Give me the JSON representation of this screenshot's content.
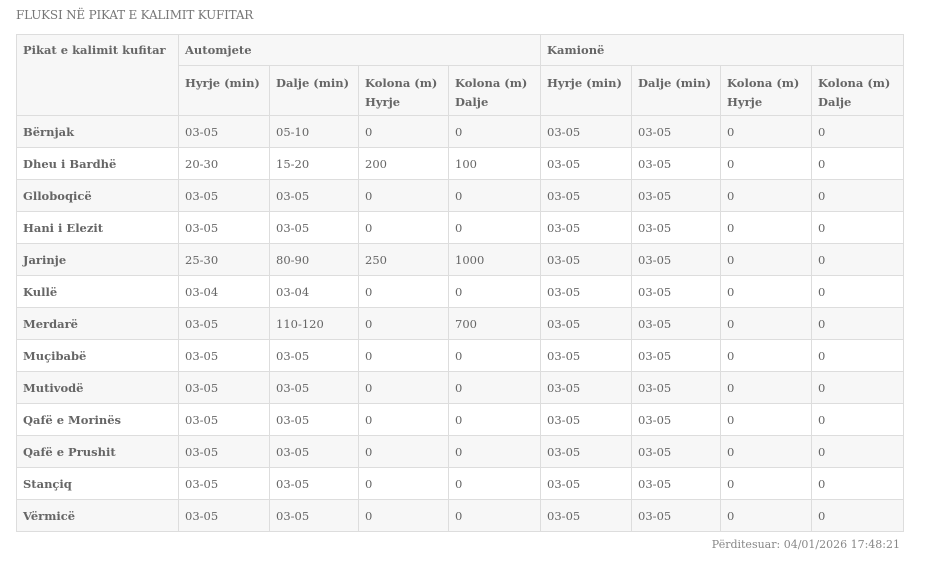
{
  "title": "FLUKSI NË PIKAT E KALIMIT KUFITAR",
  "table": {
    "corner": "Pikat e kalimit kufitar",
    "groups": [
      "Automjete",
      "Kamionë"
    ],
    "subheaders": [
      "Hyrje (min)",
      "Dalje (min)",
      "Kolona (m) Hyrje",
      "Kolona (m) Dalje",
      "Hyrje (min)",
      "Dalje (min)",
      "Kolona (m) Hyrje",
      "Kolona (m) Dalje"
    ],
    "rows": [
      {
        "name": "Bërnjak",
        "cells": [
          "03-05",
          "05-10",
          "0",
          "0",
          "03-05",
          "03-05",
          "0",
          "0"
        ]
      },
      {
        "name": "Dheu i Bardhë",
        "cells": [
          "20-30",
          "15-20",
          "200",
          "100",
          "03-05",
          "03-05",
          "0",
          "0"
        ]
      },
      {
        "name": "Glloboqicë",
        "cells": [
          "03-05",
          "03-05",
          "0",
          "0",
          "03-05",
          "03-05",
          "0",
          "0"
        ]
      },
      {
        "name": "Hani i Elezit",
        "cells": [
          "03-05",
          "03-05",
          "0",
          "0",
          "03-05",
          "03-05",
          "0",
          "0"
        ]
      },
      {
        "name": "Jarinje",
        "cells": [
          "25-30",
          "80-90",
          "250",
          "1000",
          "03-05",
          "03-05",
          "0",
          "0"
        ]
      },
      {
        "name": "Kullë",
        "cells": [
          "03-04",
          "03-04",
          "0",
          "0",
          "03-05",
          "03-05",
          "0",
          "0"
        ]
      },
      {
        "name": "Merdarë",
        "cells": [
          "03-05",
          "110-120",
          "0",
          "700",
          "03-05",
          "03-05",
          "0",
          "0"
        ]
      },
      {
        "name": "Muçibabë",
        "cells": [
          "03-05",
          "03-05",
          "0",
          "0",
          "03-05",
          "03-05",
          "0",
          "0"
        ]
      },
      {
        "name": "Mutivodë",
        "cells": [
          "03-05",
          "03-05",
          "0",
          "0",
          "03-05",
          "03-05",
          "0",
          "0"
        ]
      },
      {
        "name": "Qafë e Morinës",
        "cells": [
          "03-05",
          "03-05",
          "0",
          "0",
          "03-05",
          "03-05",
          "0",
          "0"
        ]
      },
      {
        "name": "Qafë e Prushit",
        "cells": [
          "03-05",
          "03-05",
          "0",
          "0",
          "03-05",
          "03-05",
          "0",
          "0"
        ]
      },
      {
        "name": "Stançiq",
        "cells": [
          "03-05",
          "03-05",
          "0",
          "0",
          "03-05",
          "03-05",
          "0",
          "0"
        ]
      },
      {
        "name": "Vërmicë",
        "cells": [
          "03-05",
          "03-05",
          "0",
          "0",
          "03-05",
          "03-05",
          "0",
          "0"
        ]
      }
    ]
  },
  "updated": "Përditesuar: 04/01/2026 17:48:21"
}
